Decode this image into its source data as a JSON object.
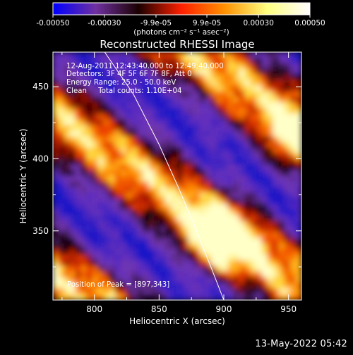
{
  "colorbar": {
    "ticks": [
      "-0.00050",
      "-0.00030",
      "-9.9e-05",
      "9.9e-05",
      "0.00030",
      "0.00050"
    ],
    "units_text": "(photons cm⁻² s⁻¹ asec⁻²)",
    "range": [
      -0.0005,
      0.0005
    ],
    "colors": [
      "#0000ff",
      "#7030a0",
      "#1a0000",
      "#ff2000",
      "#ff9000",
      "#ffff80",
      "#ffffff"
    ]
  },
  "chart_data": {
    "type": "heatmap",
    "title": "Reconstructed RHESSI Image",
    "xlabel": "Heliocentric X (arcsec)",
    "ylabel": "Heliocentric Y (arcsec)",
    "xlim": [
      768,
      960
    ],
    "ylim": [
      302,
      474
    ],
    "xticks": [
      800,
      850,
      900,
      950
    ],
    "yticks": [
      350,
      400,
      450
    ],
    "info_lines": [
      "12-Aug-2011 12:43:40.000 to 12:49:40.000",
      "Detectors: 3F 4F 5F 6F 7F 8F, Att 0",
      "Energy Range: 25.0 - 50.0 keV",
      "Clean     Total counts: 1.10E+04"
    ],
    "peak_text": "Position of Peak = [897,343]",
    "peak": [
      897,
      343
    ],
    "limb_curve": [
      [
        808,
        474
      ],
      [
        830,
        445
      ],
      [
        850,
        410
      ],
      [
        865,
        380
      ],
      [
        878,
        352
      ],
      [
        890,
        325
      ],
      [
        900,
        302
      ]
    ]
  },
  "timestamp": "13-May-2022 05:42"
}
